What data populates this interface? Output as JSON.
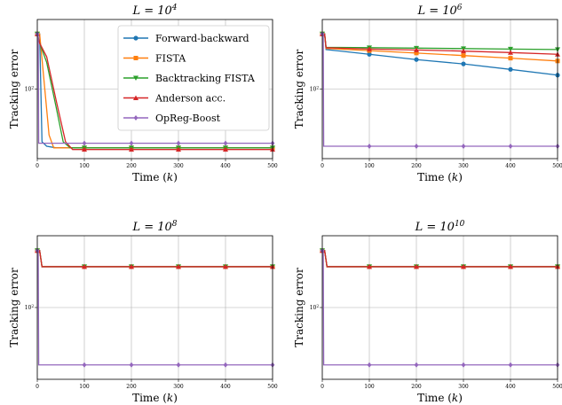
{
  "chart_data": {
    "type": "line",
    "x_label_prefix": "Time (",
    "x_label_var": "k",
    "x_label_suffix": ")",
    "y_label": "Tracking error",
    "y_scale": "log",
    "y_tick_label_base": "10",
    "y_tick_label_exp": "2",
    "xlim": [
      0,
      500
    ],
    "x_ticks": [
      0,
      100,
      200,
      300,
      400,
      500
    ],
    "grid": true,
    "legend_location": "top-right of first subplot",
    "series": [
      {
        "name": "Forward-backward",
        "color": "#1f77b4",
        "marker": "circle"
      },
      {
        "name": "FISTA",
        "color": "#ff7f0e",
        "marker": "square"
      },
      {
        "name": "Backtracking FISTA",
        "color": "#2ca02c",
        "marker": "triangle-down"
      },
      {
        "name": "Anderson acc.",
        "color": "#d62728",
        "marker": "triangle-up"
      },
      {
        "name": "OpReg-Boost",
        "color": "#9467bd",
        "marker": "diamond"
      }
    ],
    "panels": [
      {
        "title_base": "L = 10",
        "title_exp": "4",
        "ylim": [
          25,
          400
        ],
        "data": {
          "Forward-backward": [
            [
              0,
              300
            ],
            [
              5,
              300
            ],
            [
              10,
              35
            ],
            [
              20,
              32
            ],
            [
              40,
              31
            ],
            [
              100,
              31
            ],
            [
              200,
              31
            ],
            [
              300,
              31
            ],
            [
              400,
              31
            ],
            [
              500,
              31
            ]
          ],
          "FISTA": [
            [
              0,
              300
            ],
            [
              5,
              300
            ],
            [
              15,
              110
            ],
            [
              25,
              40
            ],
            [
              35,
              31
            ],
            [
              100,
              31
            ],
            [
              200,
              31
            ],
            [
              300,
              31
            ],
            [
              400,
              31
            ],
            [
              500,
              31
            ]
          ],
          "Backtracking FISTA": [
            [
              0,
              300
            ],
            [
              5,
              250
            ],
            [
              20,
              170
            ],
            [
              40,
              70
            ],
            [
              55,
              35
            ],
            [
              70,
              31
            ],
            [
              100,
              31
            ],
            [
              200,
              31
            ],
            [
              300,
              31
            ],
            [
              400,
              31
            ],
            [
              500,
              31
            ]
          ],
          "Anderson acc.": [
            [
              0,
              300
            ],
            [
              5,
              250
            ],
            [
              20,
              190
            ],
            [
              40,
              80
            ],
            [
              60,
              35
            ],
            [
              75,
              30
            ],
            [
              100,
              30
            ],
            [
              200,
              30
            ],
            [
              300,
              30
            ],
            [
              400,
              30
            ],
            [
              500,
              30
            ]
          ],
          "OpReg-Boost": [
            [
              0,
              300
            ],
            [
              2,
              300
            ],
            [
              3,
              34
            ],
            [
              50,
              34
            ],
            [
              100,
              34
            ],
            [
              200,
              34
            ],
            [
              300,
              34
            ],
            [
              400,
              34
            ],
            [
              500,
              34
            ]
          ]
        }
      },
      {
        "title_base": "L = 10",
        "title_exp": "6",
        "ylim": [
          25,
          400
        ],
        "data": {
          "Forward-backward": [
            [
              0,
              300
            ],
            [
              5,
              300
            ],
            [
              8,
              220
            ],
            [
              100,
              200
            ],
            [
              200,
              180
            ],
            [
              300,
              165
            ],
            [
              400,
              148
            ],
            [
              500,
              132
            ]
          ],
          "FISTA": [
            [
              0,
              300
            ],
            [
              5,
              300
            ],
            [
              8,
              225
            ],
            [
              100,
              215
            ],
            [
              200,
              205
            ],
            [
              300,
              195
            ],
            [
              400,
              185
            ],
            [
              500,
              175
            ]
          ],
          "Backtracking FISTA": [
            [
              0,
              300
            ],
            [
              5,
              300
            ],
            [
              8,
              230
            ],
            [
              100,
              228
            ],
            [
              200,
              226
            ],
            [
              300,
              224
            ],
            [
              400,
              222
            ],
            [
              500,
              220
            ]
          ],
          "Anderson acc.": [
            [
              0,
              300
            ],
            [
              5,
              300
            ],
            [
              8,
              228
            ],
            [
              100,
              222
            ],
            [
              200,
              218
            ],
            [
              300,
              213
            ],
            [
              400,
              207
            ],
            [
              500,
              200
            ]
          ],
          "OpReg-Boost": [
            [
              0,
              300
            ],
            [
              2,
              300
            ],
            [
              3,
              32
            ],
            [
              100,
              32
            ],
            [
              200,
              32
            ],
            [
              300,
              32
            ],
            [
              400,
              32
            ],
            [
              500,
              32
            ]
          ]
        }
      },
      {
        "title_base": "L = 10",
        "title_exp": "8",
        "ylim": [
          25,
          400
        ],
        "data": {
          "Forward-backward": [
            [
              0,
              300
            ],
            [
              5,
              300
            ],
            [
              10,
              220
            ],
            [
              100,
              220
            ],
            [
              200,
              220
            ],
            [
              300,
              220
            ],
            [
              400,
              220
            ],
            [
              500,
              220
            ]
          ],
          "FISTA": [
            [
              0,
              300
            ],
            [
              5,
              300
            ],
            [
              10,
              220
            ],
            [
              100,
              220
            ],
            [
              200,
              220
            ],
            [
              300,
              220
            ],
            [
              400,
              220
            ],
            [
              500,
              220
            ]
          ],
          "Backtracking FISTA": [
            [
              0,
              300
            ],
            [
              5,
              300
            ],
            [
              10,
              220
            ],
            [
              100,
              220
            ],
            [
              200,
              220
            ],
            [
              300,
              220
            ],
            [
              400,
              220
            ],
            [
              500,
              220
            ]
          ],
          "Anderson acc.": [
            [
              0,
              300
            ],
            [
              5,
              300
            ],
            [
              10,
              220
            ],
            [
              100,
              220
            ],
            [
              200,
              220
            ],
            [
              300,
              220
            ],
            [
              400,
              220
            ],
            [
              500,
              220
            ]
          ],
          "OpReg-Boost": [
            [
              0,
              300
            ],
            [
              2,
              300
            ],
            [
              3,
              33
            ],
            [
              100,
              33
            ],
            [
              200,
              33
            ],
            [
              300,
              33
            ],
            [
              400,
              33
            ],
            [
              500,
              33
            ]
          ]
        }
      },
      {
        "title_base": "L = 10",
        "title_exp": "10",
        "ylim": [
          25,
          400
        ],
        "data": {
          "Forward-backward": [
            [
              0,
              300
            ],
            [
              5,
              300
            ],
            [
              10,
              220
            ],
            [
              100,
              220
            ],
            [
              200,
              220
            ],
            [
              300,
              220
            ],
            [
              400,
              220
            ],
            [
              500,
              220
            ]
          ],
          "FISTA": [
            [
              0,
              300
            ],
            [
              5,
              300
            ],
            [
              10,
              220
            ],
            [
              100,
              220
            ],
            [
              200,
              220
            ],
            [
              300,
              220
            ],
            [
              400,
              220
            ],
            [
              500,
              220
            ]
          ],
          "Backtracking FISTA": [
            [
              0,
              300
            ],
            [
              5,
              300
            ],
            [
              10,
              220
            ],
            [
              100,
              220
            ],
            [
              200,
              220
            ],
            [
              300,
              220
            ],
            [
              400,
              220
            ],
            [
              500,
              220
            ]
          ],
          "Anderson acc.": [
            [
              0,
              300
            ],
            [
              5,
              300
            ],
            [
              10,
              220
            ],
            [
              100,
              220
            ],
            [
              200,
              220
            ],
            [
              300,
              220
            ],
            [
              400,
              220
            ],
            [
              500,
              220
            ]
          ],
          "OpReg-Boost": [
            [
              0,
              300
            ],
            [
              2,
              300
            ],
            [
              3,
              33
            ],
            [
              100,
              33
            ],
            [
              200,
              33
            ],
            [
              300,
              33
            ],
            [
              400,
              33
            ],
            [
              500,
              33
            ]
          ]
        }
      }
    ]
  }
}
